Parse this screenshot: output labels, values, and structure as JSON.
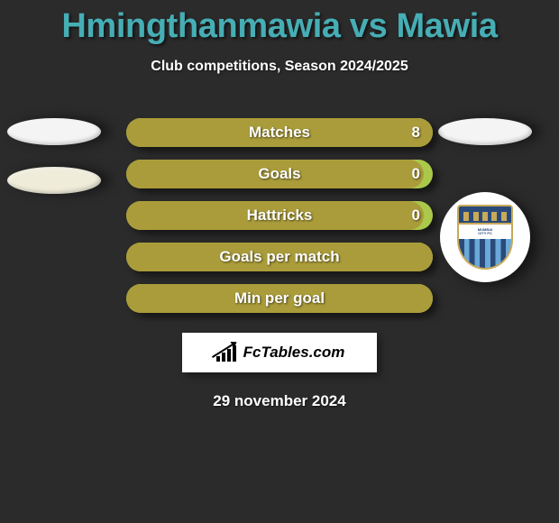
{
  "title": "Hmingthanmawia vs Mawia",
  "subtitle": "Club competitions, Season 2024/2025",
  "date": "29 november 2024",
  "watermark_text": "FcTables.com",
  "colors": {
    "title": "#46aeb5",
    "background": "#2b2b2b",
    "text": "#ffffff",
    "bar_fill": "#aa9c3a",
    "bar_track": "#aac84a",
    "left_oval_1": "#f4f4f4",
    "left_oval_2": "#f0ecda",
    "right_oval": "#f4f4f4"
  },
  "left_badges": [
    {
      "type": "oval",
      "color": "#f4f4f4"
    },
    {
      "type": "oval",
      "color": "#f0ecda"
    }
  ],
  "right_badges": [
    {
      "type": "oval",
      "color": "#f4f4f4"
    },
    {
      "type": "club",
      "name": "Mumbai City FC"
    }
  ],
  "bars": [
    {
      "label": "Matches",
      "value": "8",
      "fill_pct": 100,
      "show_value": true
    },
    {
      "label": "Goals",
      "value": "0",
      "fill_pct": 97,
      "show_value": true
    },
    {
      "label": "Hattricks",
      "value": "0",
      "fill_pct": 97,
      "show_value": true
    },
    {
      "label": "Goals per match",
      "value": "",
      "fill_pct": 100,
      "show_value": false
    },
    {
      "label": "Min per goal",
      "value": "",
      "fill_pct": 100,
      "show_value": false
    }
  ]
}
